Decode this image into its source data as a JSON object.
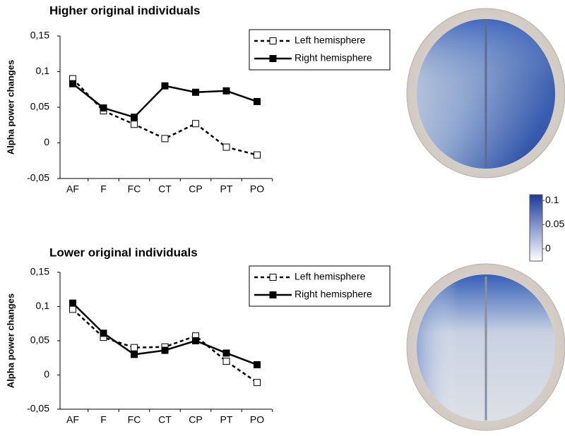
{
  "chart_data": [
    {
      "type": "line",
      "title": "Higher original individuals",
      "y_label": "Alpha power changes",
      "categories": [
        "AF",
        "F",
        "FC",
        "CT",
        "CP",
        "PT",
        "PO"
      ],
      "series": [
        {
          "name": "Left hemisphere",
          "color": "#000000",
          "linestyle": "dashed",
          "marker_fill": "#ffffff",
          "values": [
            0.09,
            0.045,
            0.026,
            0.006,
            0.027,
            -0.006,
            -0.017
          ]
        },
        {
          "name": "Right hemisphere",
          "color": "#000000",
          "linestyle": "solid",
          "marker_fill": "#000000",
          "values": [
            0.083,
            0.049,
            0.036,
            0.08,
            0.071,
            0.073,
            0.058
          ]
        }
      ],
      "ylim": [
        -0.05,
        0.15
      ],
      "yticks": [
        {
          "value": -0.05,
          "label": "-0,05"
        },
        0,
        {
          "value": 0.05,
          "label": "0,05"
        },
        {
          "value": 0.1,
          "label": "0,1"
        },
        {
          "value": 0.15,
          "label": "0,15"
        }
      ],
      "legend": "upper right"
    },
    {
      "type": "line",
      "title": "Lower original individuals",
      "y_label": "Alpha power changes",
      "categories": [
        "AF",
        "F",
        "FC",
        "CT",
        "CP",
        "PT",
        "PO"
      ],
      "series": [
        {
          "name": "Left hemisphere",
          "color": "#000000",
          "linestyle": "dashed",
          "marker_fill": "#ffffff",
          "values": [
            0.096,
            0.055,
            0.04,
            0.041,
            0.057,
            0.02,
            -0.011
          ]
        },
        {
          "name": "Right hemisphere",
          "color": "#000000",
          "linestyle": "solid",
          "marker_fill": "#000000",
          "values": [
            0.105,
            0.061,
            0.03,
            0.036,
            0.05,
            0.032,
            0.015
          ]
        }
      ],
      "ylim": [
        -0.05,
        0.15
      ],
      "yticks": [
        {
          "value": -0.05,
          "label": "-0,05"
        },
        0,
        {
          "value": 0.05,
          "label": "0,05"
        },
        {
          "value": 0.1,
          "label": "0,1"
        },
        {
          "value": 0.15,
          "label": "0,15"
        }
      ],
      "legend": "upper right"
    }
  ],
  "colorbar": {
    "clim": [
      -0.025,
      0.112
    ],
    "ticks": [
      0.1,
      0.05,
      0
    ],
    "colors": [
      "#ffffff",
      "#1a3a9c"
    ]
  }
}
